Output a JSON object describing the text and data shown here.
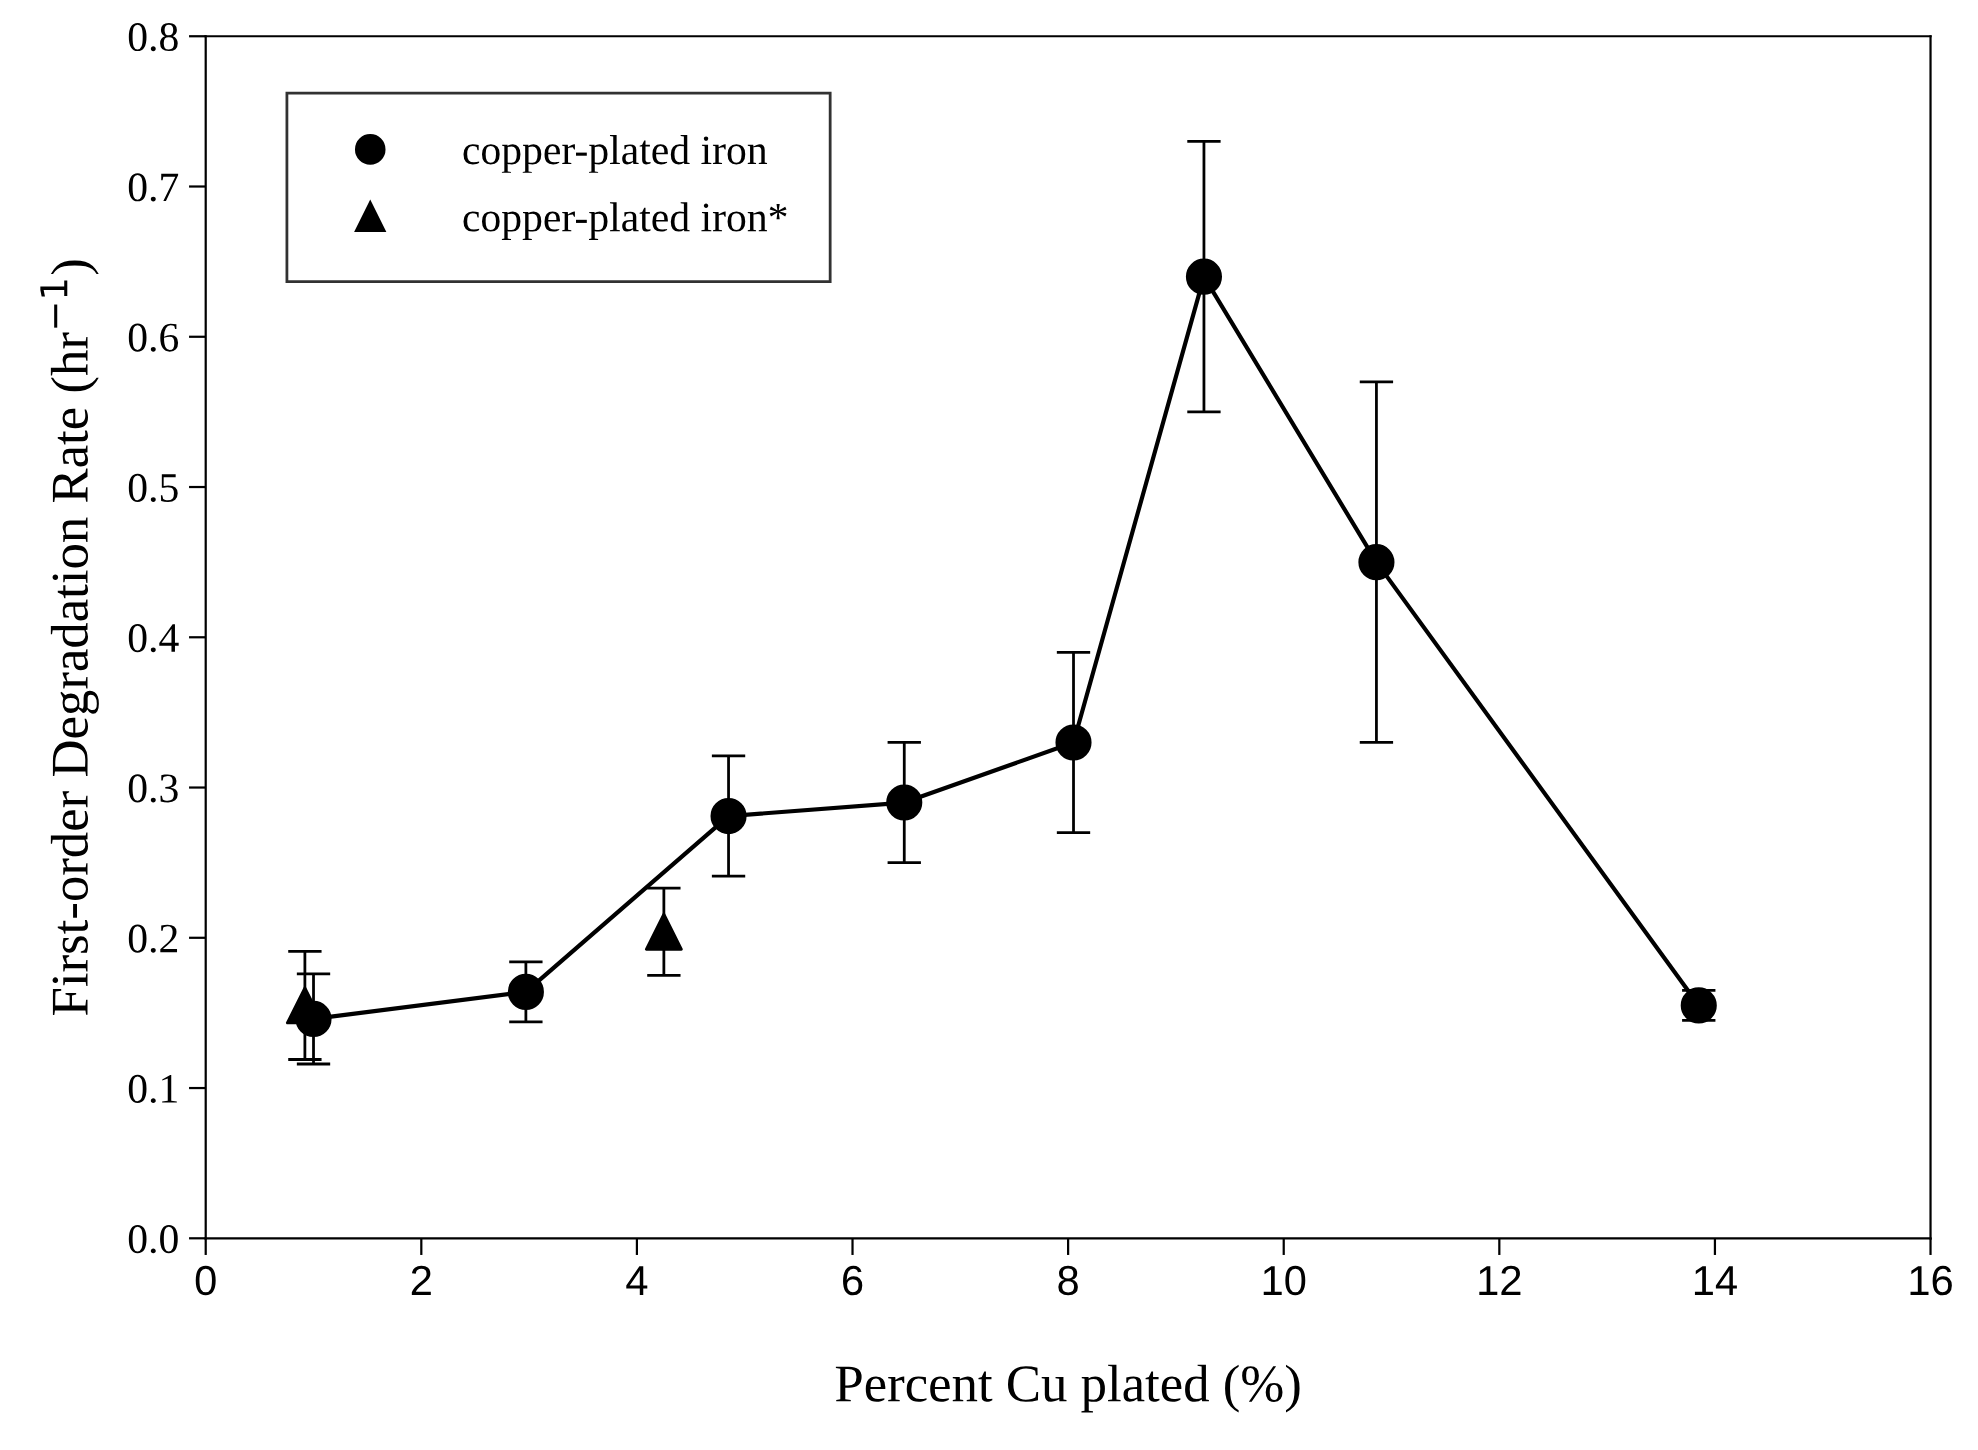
{
  "chart_data": {
    "type": "line",
    "xlabel": "Percent Cu plated (%)",
    "ylabel": "First-order Degradation Rate (hr$^{−1}$)",
    "xlim": [
      0,
      16
    ],
    "xticks": [
      0,
      2,
      4,
      6,
      8,
      10,
      12,
      14,
      16
    ],
    "ylim": [
      0,
      0.8
    ],
    "yticks": [
      {
        "value": 0,
        "label": "0.0"
      },
      0.1,
      0.2,
      0.3,
      0.4,
      0.5,
      0.6,
      0.7,
      0.8
    ],
    "grid": false,
    "legend": "top left",
    "line_style": "solid",
    "series": [
      {
        "name": "copper-plated iron",
        "marker": "circle",
        "color": "#000000",
        "x": [
          1.0,
          2.97,
          4.85,
          6.48,
          8.05,
          9.26,
          10.86,
          13.85
        ],
        "values": [
          0.146,
          0.164,
          0.281,
          0.29,
          0.33,
          0.64,
          0.45,
          0.155
        ],
        "errors": [
          0.03,
          0.02,
          0.04,
          0.04,
          0.06,
          0.09,
          0.12,
          0.01
        ]
      },
      {
        "name": "copper-plated iron*",
        "type": "scatter",
        "marker": "triangle",
        "color": "#000000",
        "x": [
          0.92,
          4.25
        ],
        "values": [
          0.155,
          0.204
        ],
        "errors": [
          0.036,
          0.029
        ]
      }
    ]
  }
}
